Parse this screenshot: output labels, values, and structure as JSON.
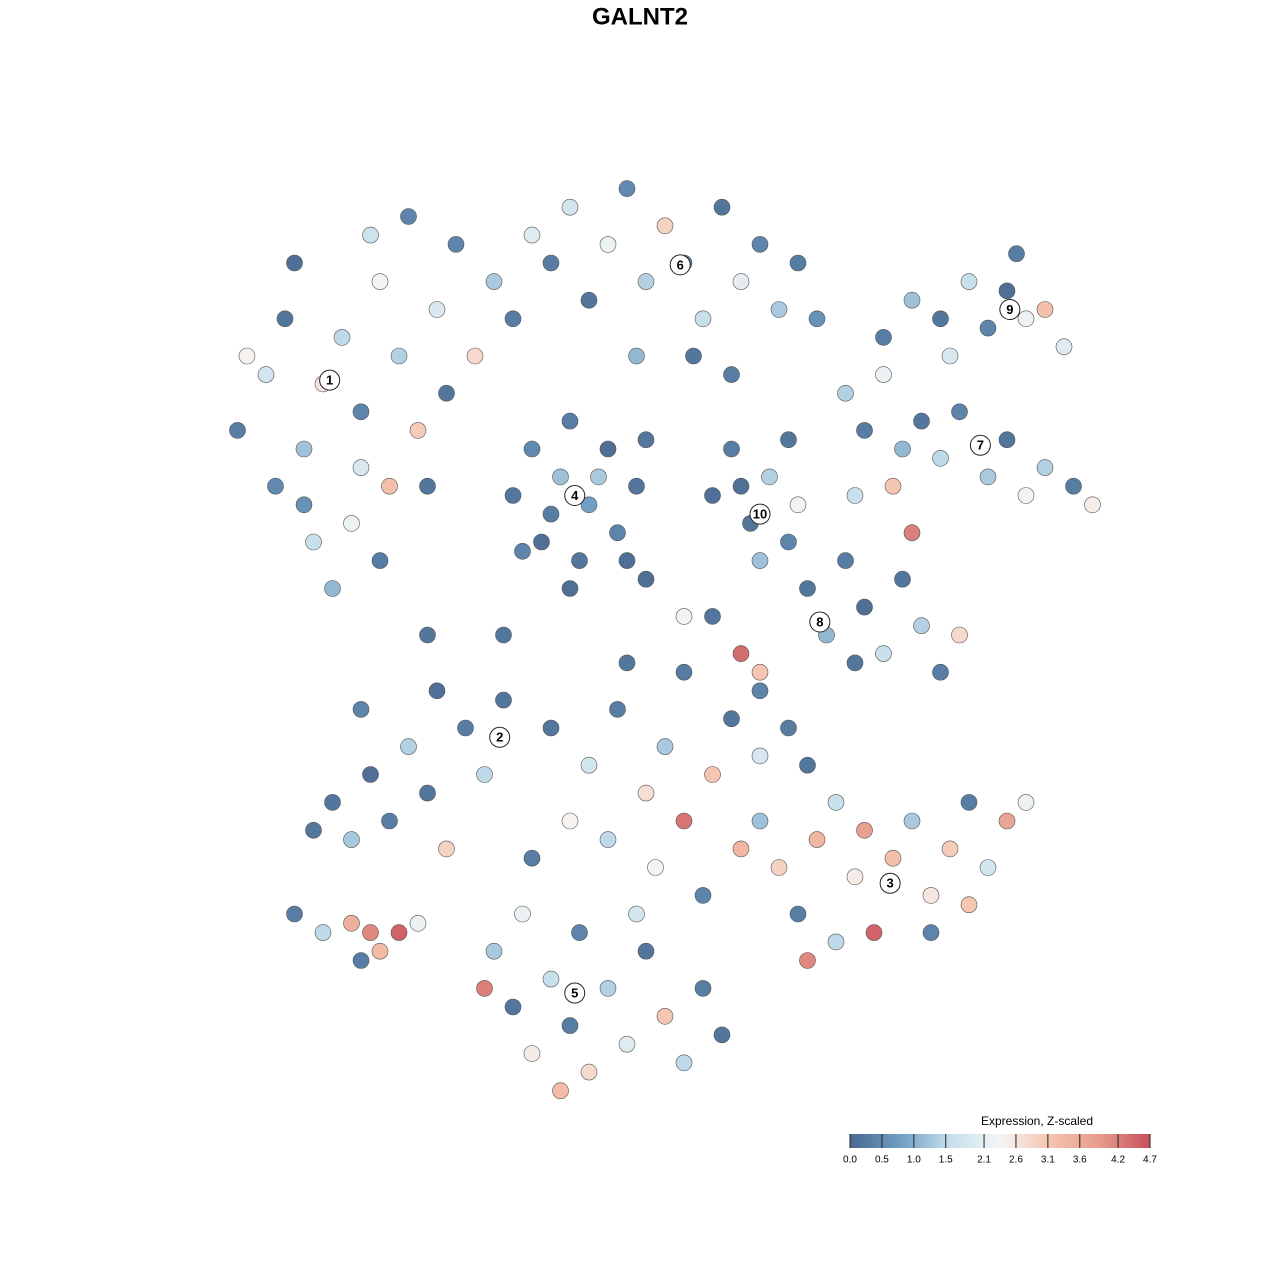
{
  "chart_data": {
    "type": "scatter",
    "title": "GALNT2",
    "xlim": [
      0,
      100
    ],
    "ylim": [
      0,
      100
    ],
    "x": [
      5,
      8,
      10,
      12,
      14,
      16,
      18,
      20,
      22,
      24,
      9,
      13,
      17,
      20,
      15,
      25,
      26,
      28,
      30,
      32,
      34,
      36,
      11,
      19,
      23,
      6,
      27,
      21,
      12,
      18,
      38,
      40,
      42,
      44,
      46,
      48,
      50,
      52,
      54,
      56,
      58,
      60,
      62,
      64,
      66,
      53,
      47,
      57,
      34,
      36,
      37,
      39,
      40,
      41,
      42,
      44,
      45,
      47,
      38,
      43,
      46,
      35,
      48,
      40,
      55,
      57,
      59,
      61,
      63,
      60,
      64,
      58,
      73,
      76,
      79,
      82,
      84,
      86,
      88,
      90,
      92,
      80,
      87,
      69,
      71,
      73,
      75,
      77,
      79,
      81,
      84,
      86,
      88,
      90,
      93,
      95,
      70,
      74,
      76,
      65,
      67,
      69,
      71,
      73,
      75,
      77,
      79,
      81,
      70,
      63,
      58,
      60,
      55,
      15,
      17,
      19,
      21,
      23,
      25,
      27,
      29,
      31,
      33,
      18,
      26,
      13,
      11,
      14,
      17,
      19,
      20,
      22,
      24,
      18,
      60,
      62,
      64,
      66,
      68,
      70,
      72,
      74,
      76,
      78,
      80,
      82,
      84,
      86,
      88,
      71,
      65,
      78,
      82,
      68,
      38,
      42,
      45,
      48,
      50,
      52,
      55,
      57,
      60,
      63,
      44,
      49,
      54,
      58,
      40,
      36,
      46,
      52,
      60,
      65,
      32,
      34,
      36,
      38,
      40,
      42,
      44,
      46,
      48,
      50,
      52,
      54,
      35,
      41,
      47,
      31,
      39,
      56,
      25,
      33,
      48,
      52
    ],
    "y": [
      72,
      78,
      84,
      70,
      77,
      82,
      74,
      88,
      80,
      72,
      66,
      60,
      62,
      58,
      55,
      66,
      85,
      92,
      80,
      88,
      84,
      93,
      90,
      93,
      95,
      80,
      76,
      66,
      64,
      68,
      90,
      96,
      86,
      92,
      98,
      88,
      94,
      90,
      84,
      96,
      88,
      92,
      85,
      90,
      84,
      80,
      80,
      78,
      65,
      70,
      60,
      67,
      73,
      58,
      64,
      70,
      61,
      66,
      63,
      67,
      58,
      59,
      71,
      55,
      65,
      70,
      62,
      67,
      71,
      58,
      64,
      66,
      82,
      86,
      84,
      88,
      83,
      87,
      84,
      85,
      81,
      80,
      91,
      76,
      72,
      78,
      70,
      73,
      69,
      74,
      67,
      71,
      65,
      68,
      66,
      64,
      65,
      66,
      61,
      55,
      50,
      58,
      53,
      48,
      56,
      51,
      46,
      50,
      47,
      60,
      48,
      46,
      52,
      32,
      28,
      35,
      30,
      38,
      33,
      27,
      40,
      35,
      43,
      42,
      44,
      29,
      20,
      18,
      19,
      18,
      16,
      18,
      19,
      15,
      30,
      25,
      20,
      28,
      32,
      24,
      18,
      26,
      30,
      22,
      27,
      32,
      25,
      30,
      32,
      29,
      15,
      18,
      21,
      17,
      40,
      36,
      42,
      33,
      38,
      30,
      35,
      41,
      37,
      40,
      28,
      25,
      22,
      27,
      30,
      26,
      47,
      46,
      44,
      36,
      16,
      10,
      5,
      13,
      8,
      3,
      12,
      6,
      16,
      9,
      4,
      12,
      20,
      18,
      20,
      12,
      1,
      7,
      50,
      50,
      56,
      52
    ],
    "expression": [
      0.3,
      1.8,
      0.2,
      1.2,
      2.6,
      1.5,
      0.4,
      2.3,
      1.4,
      3.0,
      0.5,
      1.6,
      2.2,
      0.3,
      1.1,
      0.2,
      1.9,
      0.4,
      2.8,
      1.3,
      0.3,
      2.0,
      0.1,
      1.7,
      0.4,
      2.4,
      0.2,
      3.2,
      0.6,
      1.9,
      0.3,
      1.8,
      0.2,
      2.2,
      0.5,
      1.4,
      2.9,
      0.3,
      1.6,
      0.2,
      2.1,
      0.4,
      1.3,
      0.3,
      0.6,
      0.2,
      1.1,
      0.3,
      0.2,
      0.5,
      0.1,
      1.2,
      0.3,
      0.2,
      0.8,
      0.1,
      0.4,
      0.2,
      0.3,
      1.3,
      0.1,
      0.4,
      0.2,
      0.1,
      0.1,
      0.3,
      0.2,
      1.4,
      0.2,
      1.2,
      2.4,
      0.1,
      0.3,
      1.2,
      0.2,
      1.6,
      0.4,
      0.1,
      2.2,
      3.2,
      2.0,
      1.9,
      0.3,
      1.4,
      0.3,
      2.2,
      1.1,
      0.2,
      1.5,
      0.4,
      1.3,
      0.2,
      2.3,
      1.4,
      0.3,
      2.5,
      1.6,
      3.1,
      4.2,
      0.2,
      1.1,
      0.3,
      0.1,
      1.6,
      0.2,
      1.4,
      0.3,
      2.8,
      0.2,
      0.4,
      4.4,
      3.1,
      0.2,
      0.2,
      1.3,
      0.1,
      0.3,
      1.4,
      0.2,
      2.9,
      0.3,
      1.5,
      0.2,
      0.4,
      0.1,
      0.2,
      0.3,
      1.5,
      3.5,
      4.1,
      3.3,
      4.5,
      2.2,
      0.3,
      1.2,
      2.9,
      0.3,
      3.4,
      1.6,
      2.5,
      4.5,
      3.2,
      1.3,
      2.6,
      3.0,
      0.3,
      1.8,
      3.7,
      2.2,
      3.8,
      4.1,
      0.4,
      3.1,
      1.5,
      0.2,
      1.8,
      0.3,
      2.7,
      1.3,
      4.3,
      3.1,
      0.2,
      1.9,
      0.3,
      1.5,
      2.3,
      0.4,
      3.4,
      2.4,
      0.3,
      0.2,
      0.3,
      0.4,
      0.2,
      1.3,
      0.2,
      2.5,
      1.6,
      0.3,
      2.8,
      1.4,
      2.0,
      0.2,
      3.1,
      1.5,
      0.3,
      2.2,
      0.4,
      1.8,
      4.2,
      3.3,
      0.2,
      0.2,
      0.2,
      0.1,
      2.3
    ],
    "annotations": [
      {
        "text": "1",
        "x": 14.7,
        "y": 77.4
      },
      {
        "text": "2",
        "x": 32.6,
        "y": 39.0
      },
      {
        "text": "3",
        "x": 73.7,
        "y": 23.3
      },
      {
        "text": "4",
        "x": 40.5,
        "y": 65.0
      },
      {
        "text": "5",
        "x": 40.5,
        "y": 11.5
      },
      {
        "text": "6",
        "x": 51.6,
        "y": 89.8
      },
      {
        "text": "7",
        "x": 83.2,
        "y": 70.4
      },
      {
        "text": "8",
        "x": 66.3,
        "y": 51.4
      },
      {
        "text": "9",
        "x": 86.3,
        "y": 85.0
      },
      {
        "text": "10",
        "x": 60.0,
        "y": 63.0
      }
    ],
    "colorbar": {
      "title": "Expression, Z-scaled",
      "clim": [
        0,
        4.7
      ],
      "colors": [
        "#4a6890",
        "#6f9ec4",
        "#c5dfec",
        "#f5f5f5",
        "#f5c4ae",
        "#e69a8a",
        "#c84f5c"
      ],
      "ticks": [
        {
          "value": 0,
          "label": "0.0"
        },
        0.5,
        {
          "value": 1,
          "label": "1.0"
        },
        1.5,
        2.1,
        2.6,
        3.1,
        3.6,
        4.2,
        4.7
      ]
    }
  }
}
